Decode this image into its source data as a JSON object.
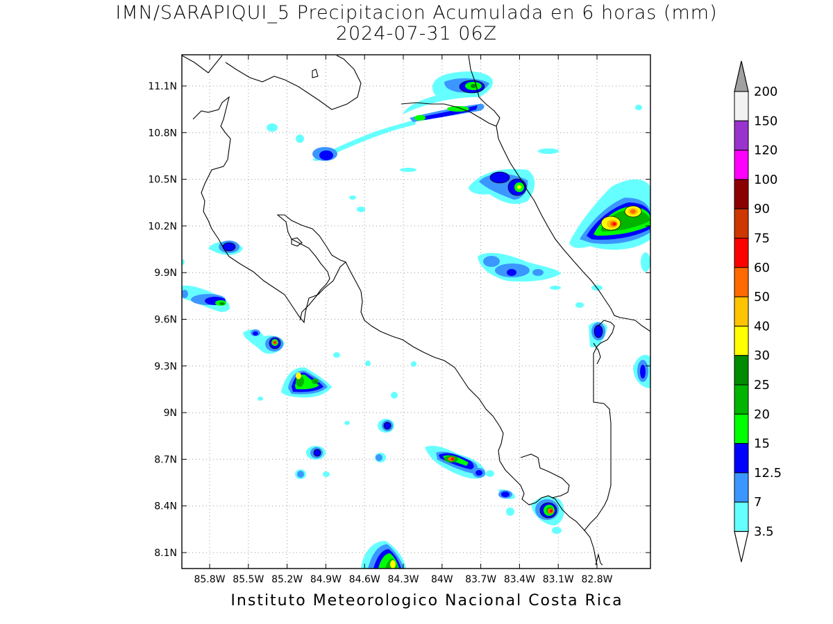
{
  "title_line1": "IMN/SARAPIQUI_5 Precipitacion Acumulada en 6 horas (mm)",
  "title_line2": "2024-07-31 06Z",
  "credit": "Instituto Meteorologico Nacional Costa Rica",
  "lat_ticks": [
    "11.1N",
    "10.8N",
    "10.5N",
    "10.2N",
    "9.9N",
    "9.6N",
    "9.3N",
    "9N",
    "8.7N",
    "8.4N",
    "8.1N"
  ],
  "lon_ticks": [
    "85.8W",
    "85.5W",
    "85.2W",
    "84.9W",
    "84.6W",
    "84.3W",
    "84W",
    "83.7W",
    "83.4W",
    "83.1W",
    "82.8W"
  ],
  "colorbar": {
    "levels": [
      "200",
      "150",
      "120",
      "100",
      "90",
      "75",
      "60",
      "50",
      "40",
      "30",
      "25",
      "20",
      "15",
      "12.5",
      "7",
      "3.5"
    ],
    "colors": [
      "#f2f2f2",
      "#9a32cd",
      "#ff00ff",
      "#8b0000",
      "#cd3700",
      "#ff0000",
      "#ff6a00",
      "#ffc400",
      "#ffff00",
      "#008b00",
      "#00b400",
      "#00ff00",
      "#0000ff",
      "#3c96ff",
      "#66ffff"
    ],
    "top_arrow_color": "#a0a0a0",
    "bottom_arrow_color": "#ffffff"
  }
}
